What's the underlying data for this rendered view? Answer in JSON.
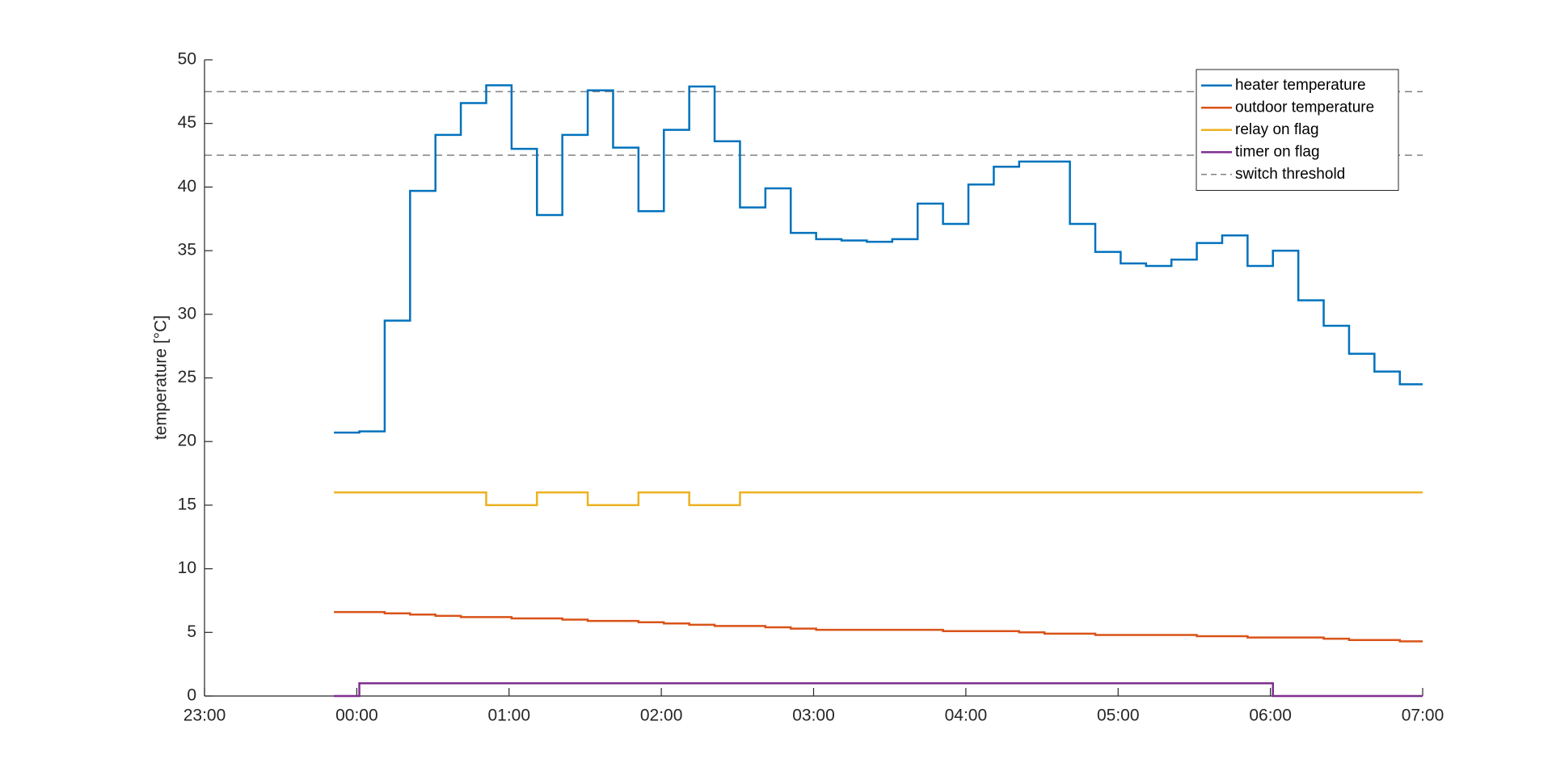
{
  "chart_data": {
    "type": "stairs",
    "ylabel": "temperature [°C]",
    "x": [
      "23:51",
      "00:01",
      "00:11",
      "00:21",
      "00:31",
      "00:41",
      "00:51",
      "01:01",
      "01:11",
      "01:21",
      "01:31",
      "01:41",
      "01:51",
      "02:01",
      "02:11",
      "02:21",
      "02:31",
      "02:41",
      "02:51",
      "03:01",
      "03:11",
      "03:21",
      "03:31",
      "03:41",
      "03:51",
      "04:01",
      "04:11",
      "04:21",
      "04:31",
      "04:41",
      "04:51",
      "05:01",
      "05:11",
      "05:21",
      "05:31",
      "05:41",
      "05:51",
      "06:01",
      "06:11",
      "06:21",
      "06:31",
      "06:41",
      "06:51",
      "07:00"
    ],
    "series": [
      {
        "name": "heater temperature",
        "color": "#0072BD",
        "values": [
          20.7,
          20.8,
          29.5,
          39.7,
          44.1,
          46.6,
          48.0,
          43.0,
          37.8,
          44.1,
          47.6,
          43.1,
          38.1,
          44.5,
          47.9,
          43.6,
          38.4,
          39.9,
          36.4,
          35.9,
          35.8,
          35.7,
          35.9,
          38.7,
          37.1,
          40.2,
          41.6,
          42.0,
          42.0,
          37.1,
          34.9,
          34.0,
          33.8,
          34.3,
          35.6,
          36.2,
          33.8,
          35.0,
          31.1,
          29.1,
          26.9,
          25.5,
          24.5,
          24.5
        ]
      },
      {
        "name": "outdoor temperature",
        "color": "#D95319",
        "values": [
          6.6,
          6.6,
          6.5,
          6.4,
          6.3,
          6.2,
          6.2,
          6.1,
          6.1,
          6.0,
          5.9,
          5.9,
          5.8,
          5.7,
          5.6,
          5.5,
          5.5,
          5.4,
          5.3,
          5.2,
          5.2,
          5.2,
          5.2,
          5.2,
          5.1,
          5.1,
          5.1,
          5.0,
          4.9,
          4.9,
          4.8,
          4.8,
          4.8,
          4.8,
          4.7,
          4.7,
          4.6,
          4.6,
          4.6,
          4.5,
          4.4,
          4.4,
          4.3,
          4.3
        ]
      },
      {
        "name": "relay on flag",
        "color": "#EDB120",
        "values": [
          16,
          16,
          16,
          16,
          16,
          16,
          15,
          15,
          16,
          16,
          15,
          15,
          16,
          16,
          15,
          15,
          16,
          16,
          16,
          16,
          16,
          16,
          16,
          16,
          16,
          16,
          16,
          16,
          16,
          16,
          16,
          16,
          16,
          16,
          16,
          16,
          16,
          16,
          16,
          16,
          16,
          16,
          16,
          16
        ]
      },
      {
        "name": "timer on flag",
        "color": "#7E2F8E",
        "values": [
          0,
          1,
          1,
          1,
          1,
          1,
          1,
          1,
          1,
          1,
          1,
          1,
          1,
          1,
          1,
          1,
          1,
          1,
          1,
          1,
          1,
          1,
          1,
          1,
          1,
          1,
          1,
          1,
          1,
          1,
          1,
          1,
          1,
          1,
          1,
          1,
          1,
          0,
          0,
          0,
          0,
          0,
          0,
          0
        ]
      }
    ],
    "threshold": {
      "name": "switch threshold",
      "color": "#808080",
      "values": [
        47.5,
        42.5
      ]
    },
    "xlim": [
      "23:00",
      "07:00"
    ],
    "xticks": [
      "23:00",
      "00:00",
      "01:00",
      "02:00",
      "03:00",
      "04:00",
      "05:00",
      "06:00",
      "07:00"
    ],
    "ylim": [
      0,
      50
    ],
    "yticks": [
      0,
      5,
      10,
      15,
      20,
      25,
      30,
      35,
      40,
      45,
      50
    ],
    "legend": "northeast",
    "grid": false
  }
}
